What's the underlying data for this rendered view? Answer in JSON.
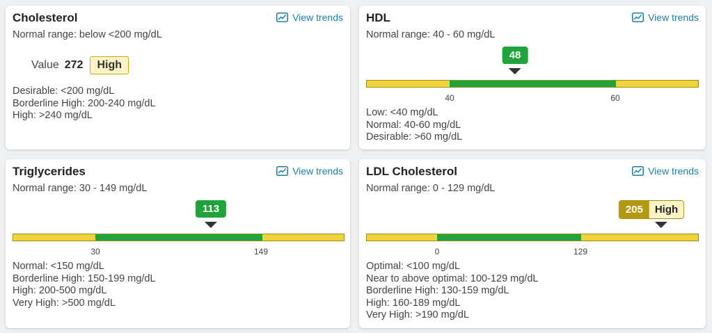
{
  "cards": {
    "cholesterol": {
      "title": "Cholesterol",
      "range": "Normal range: below <200 mg/dL",
      "trends": "View trends",
      "value_label": "Value",
      "value": "272",
      "level": "High",
      "desc": [
        "Desirable: <200 mg/dL",
        "Borderline High: 200-240 mg/dL",
        "High: >240 mg/dL"
      ]
    },
    "hdl": {
      "title": "HDL",
      "range": "Normal range: 40 - 60 mg/dL",
      "trends": "View trends",
      "value": "48",
      "tick_low": "40",
      "tick_high": "60",
      "desc": [
        "Low: <40 mg/dL",
        "Normal: 40-60 mg/dL",
        "Desirable: >60 mg/dL"
      ]
    },
    "triglycerides": {
      "title": "Triglycerides",
      "range": "Normal range: 30 - 149 mg/dL",
      "trends": "View trends",
      "value": "113",
      "tick_low": "30",
      "tick_high": "149",
      "desc": [
        "Normal: <150 mg/dL",
        "Borderline High: 150-199 mg/dL",
        "High: 200-500 mg/dL",
        "Very High: >500 mg/dL"
      ]
    },
    "ldl": {
      "title": "LDL Cholesterol",
      "range": "Normal range: 0 - 129 mg/dL",
      "trends": "View trends",
      "value": "205",
      "level": "High",
      "tick_low": "0",
      "tick_high": "129",
      "desc": [
        "Optimal: <100 mg/dL",
        "Near to above optimal: 100-129 mg/dL",
        "Borderline High: 130-159 mg/dL",
        "High: 160-189 mg/dL",
        "Very High: >190 mg/dL"
      ]
    }
  },
  "colors": {
    "normal": "#1fa33a",
    "out_of_range": "#f0d43a",
    "high_badge": "#fdf3c6",
    "link": "#1a7fa0"
  }
}
